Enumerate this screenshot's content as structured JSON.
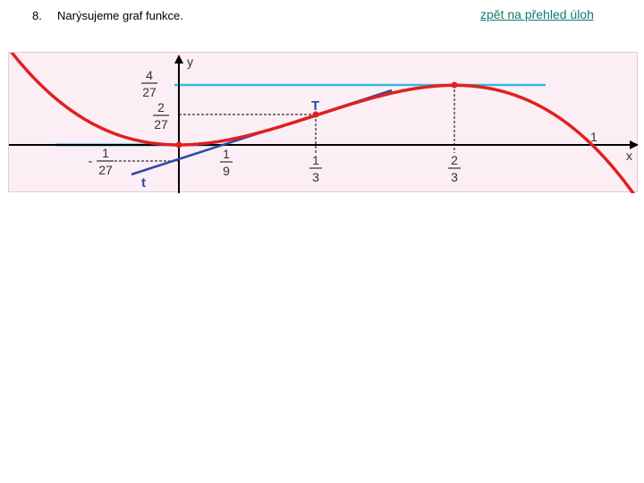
{
  "header": {
    "problem_number": "8.",
    "title": "Narýsujeme graf funkce.",
    "back_link": "zpět na přehled úloh"
  },
  "graph": {
    "function": "y = x^2 - x^3",
    "axis_labels": {
      "x": "x",
      "y": "y"
    },
    "x_tick_labels": [
      {
        "num": "1",
        "den": "9",
        "value": 0.1111
      },
      {
        "num": "1",
        "den": "3",
        "value": 0.3333
      },
      {
        "num": "2",
        "den": "3",
        "value": 0.6667
      }
    ],
    "x_one_label": "1",
    "y_tick_labels": [
      {
        "num": "4",
        "den": "27",
        "value": 0.1481
      },
      {
        "num": "2",
        "den": "27",
        "value": 0.0741
      },
      {
        "sign": "-",
        "num": "1",
        "den": "27",
        "value": -0.037
      }
    ],
    "point_label": "T",
    "tangent_label": "t",
    "colors": {
      "curve": "#e02020",
      "tangent": "#2a4aa8",
      "horizontal_tangents": "#33bbe0",
      "axes": "#000000",
      "guides": "#000000",
      "background": "#fbeef4"
    }
  }
}
